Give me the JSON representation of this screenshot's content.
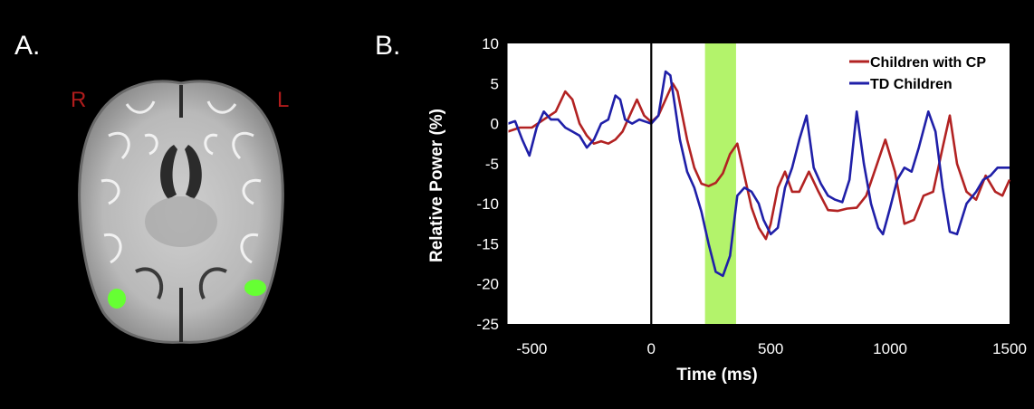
{
  "panels": {
    "a_label": "A.",
    "b_label": "B."
  },
  "brain": {
    "right_label": "R",
    "left_label": "L",
    "highlight_color": "#66ff33"
  },
  "colors": {
    "cp": "#b22222",
    "td": "#1f1fa8",
    "window": "#b3f36b",
    "side_labels": "#b01c1c"
  },
  "chart_data": {
    "type": "line",
    "title": "",
    "xlabel": "Time (ms)",
    "ylabel": "Relative Power (%)",
    "xlim": [
      -600,
      1500
    ],
    "ylim": [
      -25,
      10
    ],
    "xticks": [
      -500,
      0,
      500,
      1000,
      1500
    ],
    "yticks": [
      10,
      5,
      0,
      -5,
      -10,
      -15,
      -20,
      -25
    ],
    "legend_position": "top-right",
    "grid": false,
    "vline_x": 0,
    "highlight_window": [
      225,
      355
    ],
    "series": [
      {
        "name": "Children with CP",
        "color": "#b22222",
        "x": [
          -600,
          -550,
          -500,
          -450,
          -400,
          -360,
          -330,
          -300,
          -270,
          -240,
          -210,
          -180,
          -150,
          -120,
          -90,
          -60,
          -30,
          0,
          30,
          60,
          90,
          110,
          130,
          150,
          180,
          210,
          240,
          270,
          300,
          330,
          360,
          390,
          420,
          450,
          480,
          500,
          530,
          560,
          590,
          620,
          660,
          700,
          740,
          780,
          820,
          860,
          900,
          940,
          980,
          1020,
          1060,
          1100,
          1140,
          1180,
          1220,
          1250,
          1280,
          1320,
          1360,
          1400,
          1440,
          1470,
          1500
        ],
        "y": [
          -1,
          -0.5,
          -0.5,
          0.5,
          1.5,
          4,
          3,
          0,
          -1.5,
          -2.5,
          -2.2,
          -2.5,
          -2,
          -1,
          1,
          3,
          1,
          0.2,
          1,
          3,
          5,
          4,
          1,
          -2,
          -5.5,
          -7.5,
          -7.8,
          -7.4,
          -6.2,
          -3.8,
          -2.5,
          -6.5,
          -10.5,
          -13,
          -14.4,
          -12.5,
          -8,
          -6,
          -8.5,
          -8.5,
          -6,
          -8.5,
          -10.8,
          -10.9,
          -10.6,
          -10.5,
          -9,
          -5.5,
          -2,
          -6,
          -12.5,
          -12,
          -9,
          -8.5,
          -3,
          1,
          -5,
          -8.5,
          -9.5,
          -6.5,
          -8.5,
          -9,
          -7
        ]
      },
      {
        "name": "TD Children",
        "color": "#1f1fa8",
        "x": [
          -600,
          -570,
          -540,
          -510,
          -480,
          -450,
          -420,
          -390,
          -360,
          -330,
          -300,
          -270,
          -240,
          -210,
          -180,
          -150,
          -130,
          -110,
          -80,
          -50,
          -20,
          0,
          30,
          60,
          80,
          100,
          120,
          150,
          180,
          210,
          240,
          270,
          300,
          330,
          360,
          390,
          420,
          450,
          470,
          500,
          530,
          560,
          590,
          620,
          650,
          680,
          710,
          740,
          770,
          800,
          830,
          860,
          890,
          920,
          950,
          970,
          1000,
          1030,
          1060,
          1090,
          1120,
          1160,
          1190,
          1220,
          1250,
          1280,
          1320,
          1360,
          1390,
          1420,
          1450,
          1480,
          1500
        ],
        "y": [
          0,
          0.3,
          -2,
          -4,
          -0.5,
          1.5,
          0.5,
          0.5,
          -0.5,
          -1,
          -1.5,
          -3,
          -2,
          0,
          0.5,
          3.5,
          3,
          0.5,
          0,
          0.5,
          0.2,
          0,
          1,
          6.5,
          6,
          2,
          -2,
          -6,
          -8,
          -11,
          -15,
          -18.5,
          -19,
          -16.5,
          -9,
          -8,
          -8.5,
          -10,
          -12,
          -13.8,
          -13,
          -8,
          -5.5,
          -2,
          1,
          -5.5,
          -7.5,
          -9,
          -9.5,
          -9.8,
          -7,
          1.5,
          -5,
          -10,
          -13,
          -13.8,
          -10.5,
          -7,
          -5.5,
          -6,
          -3,
          1.5,
          -1,
          -8,
          -13.5,
          -13.8,
          -10,
          -8.5,
          -7,
          -6.5,
          -5.5,
          -5.5,
          -5.5
        ]
      }
    ]
  }
}
